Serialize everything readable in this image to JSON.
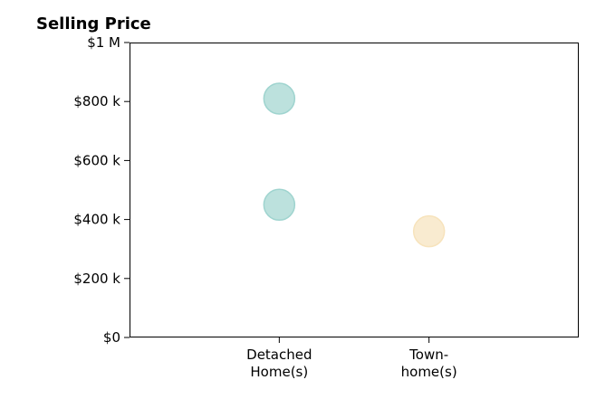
{
  "chart_data": {
    "type": "scatter",
    "title": "Selling Price",
    "xlabel": "",
    "ylabel": "",
    "categories": [
      [
        "Detached",
        "Home(s)"
      ],
      [
        "Town-",
        "home(s)"
      ]
    ],
    "category_positions": [
      1,
      2
    ],
    "xlim": [
      0,
      3
    ],
    "ylim": [
      0,
      1000000
    ],
    "y_ticks": [
      0,
      200000,
      400000,
      600000,
      800000,
      1000000
    ],
    "y_tick_labels": [
      "$0",
      "$200 k",
      "$400 k",
      "$600 k",
      "$800 k",
      "$1 M"
    ],
    "grid": false,
    "points": [
      {
        "category": "Detached Home(s)",
        "x": 1,
        "y": 810000,
        "color": "#9fd4cf"
      },
      {
        "category": "Detached Home(s)",
        "x": 1,
        "y": 450000,
        "color": "#9fd4cf"
      },
      {
        "category": "Town-home(s)",
        "x": 2,
        "y": 360000,
        "color": "#f7e3bc"
      }
    ]
  }
}
